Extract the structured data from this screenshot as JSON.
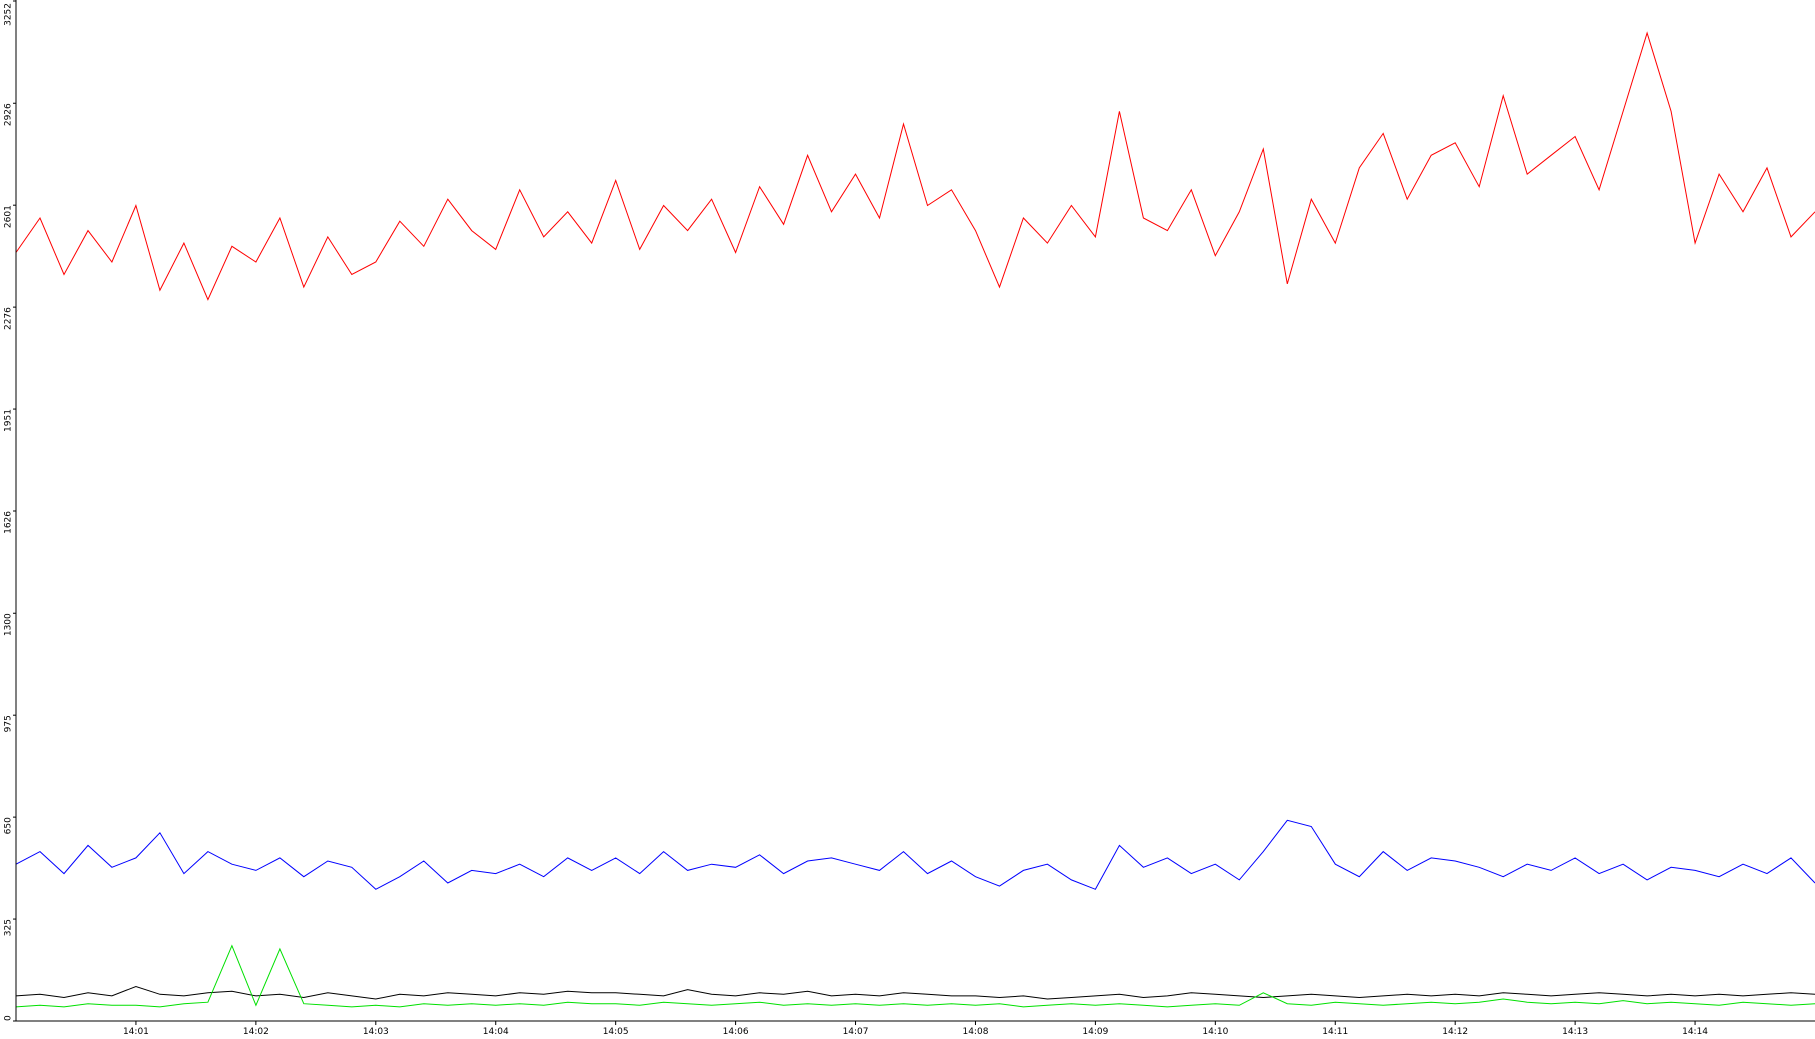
{
  "chart_data": {
    "type": "line",
    "x": [
      840.0,
      840.2,
      840.4,
      840.6,
      840.8,
      841.0,
      841.2,
      841.4,
      841.6,
      841.8,
      842.0,
      842.2,
      842.4,
      842.6,
      842.8,
      843.0,
      843.2,
      843.4,
      843.6,
      843.8,
      844.0,
      844.2,
      844.4,
      844.6,
      844.8,
      845.0,
      845.2,
      845.4,
      845.6,
      845.8,
      846.0,
      846.2,
      846.4,
      846.6,
      846.8,
      847.0,
      847.2,
      847.4,
      847.6,
      847.8,
      848.0,
      848.2,
      848.4,
      848.6,
      848.8,
      849.0,
      849.2,
      849.4,
      849.6,
      849.8,
      850.0,
      850.2,
      850.4,
      850.6,
      850.8,
      851.0,
      851.2,
      851.4,
      851.6,
      851.8,
      852.0,
      852.2,
      852.4,
      852.6,
      852.8,
      853.0,
      853.2,
      853.4,
      853.6,
      853.8,
      854.0,
      854.2,
      854.4,
      854.6,
      854.8,
      855.0
    ],
    "series": [
      {
        "color": "#ff0000",
        "values": [
          2450,
          2560,
          2380,
          2520,
          2420,
          2600,
          2330,
          2480,
          2300,
          2470,
          2420,
          2560,
          2340,
          2500,
          2380,
          2420,
          2550,
          2470,
          2620,
          2520,
          2460,
          2650,
          2500,
          2580,
          2480,
          2680,
          2460,
          2600,
          2520,
          2620,
          2450,
          2660,
          2540,
          2760,
          2580,
          2700,
          2560,
          2860,
          2600,
          2650,
          2520,
          2340,
          2560,
          2480,
          2600,
          2500,
          2900,
          2560,
          2520,
          2650,
          2440,
          2580,
          2780,
          2350,
          2620,
          2480,
          2720,
          2830,
          2620,
          2760,
          2800,
          2660,
          2950,
          2700,
          2760,
          2820,
          2650,
          2900,
          3150,
          2900,
          2480,
          2700,
          2580,
          2720,
          2500,
          2580
        ]
      },
      {
        "color": "#0000ff",
        "values": [
          500,
          540,
          470,
          560,
          490,
          520,
          600,
          470,
          540,
          500,
          480,
          520,
          460,
          510,
          490,
          420,
          460,
          510,
          440,
          480,
          470,
          500,
          460,
          520,
          480,
          520,
          470,
          540,
          480,
          500,
          490,
          530,
          470,
          510,
          520,
          500,
          480,
          540,
          470,
          510,
          460,
          430,
          480,
          500,
          450,
          420,
          560,
          490,
          520,
          470,
          500,
          450,
          540,
          640,
          620,
          500,
          460,
          540,
          480,
          520,
          510,
          490,
          460,
          500,
          480,
          520,
          470,
          500,
          450,
          490,
          480,
          460,
          500,
          470,
          520,
          440
        ]
      },
      {
        "color": "#000000",
        "values": [
          80,
          85,
          75,
          90,
          80,
          110,
          85,
          80,
          90,
          95,
          80,
          85,
          75,
          90,
          80,
          70,
          85,
          80,
          90,
          85,
          80,
          90,
          85,
          95,
          90,
          90,
          85,
          80,
          100,
          85,
          80,
          90,
          85,
          95,
          80,
          85,
          80,
          90,
          85,
          80,
          80,
          75,
          80,
          70,
          75,
          80,
          85,
          75,
          80,
          90,
          85,
          80,
          75,
          80,
          85,
          80,
          75,
          80,
          85,
          80,
          85,
          80,
          90,
          85,
          80,
          85,
          90,
          85,
          80,
          85,
          80,
          85,
          80,
          85,
          90,
          85
        ]
      },
      {
        "color": "#00e000",
        "values": [
          45,
          50,
          45,
          55,
          50,
          50,
          45,
          55,
          60,
          240,
          50,
          230,
          55,
          50,
          45,
          50,
          45,
          55,
          50,
          55,
          50,
          55,
          50,
          60,
          55,
          55,
          50,
          60,
          55,
          50,
          55,
          60,
          50,
          55,
          50,
          55,
          50,
          55,
          50,
          55,
          50,
          55,
          45,
          50,
          55,
          50,
          55,
          50,
          45,
          50,
          55,
          50,
          90,
          55,
          50,
          60,
          55,
          50,
          55,
          60,
          55,
          60,
          70,
          60,
          55,
          60,
          55,
          65,
          55,
          60,
          55,
          50,
          60,
          55,
          50,
          55
        ]
      }
    ],
    "xlim": [
      840,
      855
    ],
    "xticks": [
      {
        "value": 841,
        "label": "14:01"
      },
      {
        "value": 842,
        "label": "14:02"
      },
      {
        "value": 843,
        "label": "14:03"
      },
      {
        "value": 844,
        "label": "14:04"
      },
      {
        "value": 845,
        "label": "14:05"
      },
      {
        "value": 846,
        "label": "14:06"
      },
      {
        "value": 847,
        "label": "14:07"
      },
      {
        "value": 848,
        "label": "14:08"
      },
      {
        "value": 849,
        "label": "14:09"
      },
      {
        "value": 850,
        "label": "14:10"
      },
      {
        "value": 851,
        "label": "14:11"
      },
      {
        "value": 852,
        "label": "14:12"
      },
      {
        "value": 853,
        "label": "14:13"
      },
      {
        "value": 854,
        "label": "14:14"
      }
    ],
    "ylim": [
      0,
      3252
    ],
    "yticks": [
      0,
      325,
      650,
      975,
      1300,
      1626,
      1951,
      2276,
      2601,
      2926,
      3252
    ]
  }
}
